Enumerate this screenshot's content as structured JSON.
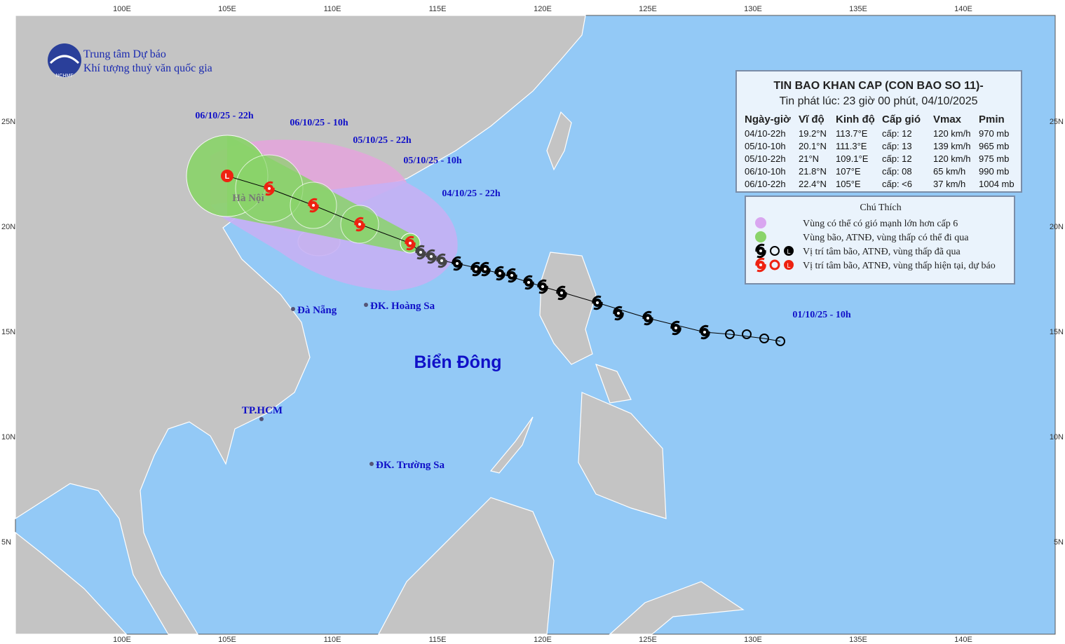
{
  "map": {
    "lon_labels": [
      "100E",
      "105E",
      "110E",
      "115E",
      "120E",
      "125E",
      "130E",
      "135E",
      "140E"
    ],
    "lat_labels": [
      "25N",
      "20N",
      "15N",
      "10N",
      "5N"
    ]
  },
  "header": {
    "org_line1": "Trung tâm Dự báo",
    "org_line2": "Khí tượng thuỷ văn quốc gia",
    "logo_text": "NCHMF"
  },
  "bulletin": {
    "title": "TIN BAO KHAN CAP (CON BAO SO 11)-",
    "issued": "Tin phát lúc: 23 giờ 00 phút, 04/10/2025",
    "columns": [
      "Ngày-giờ",
      "Vĩ độ",
      "Kinh độ",
      "Cấp gió",
      "Vmax",
      "Pmin"
    ],
    "rows": [
      [
        "04/10-22h",
        "19.2°N",
        "113.7°E",
        "cấp: 12",
        "120 km/h",
        "970 mb"
      ],
      [
        "05/10-10h",
        "20.1°N",
        "111.3°E",
        "cấp: 13",
        "139 km/h",
        "965 mb"
      ],
      [
        "05/10-22h",
        "21°N",
        "109.1°E",
        "cấp: 12",
        "120 km/h",
        "975 mb"
      ],
      [
        "06/10-10h",
        "21.8°N",
        "107°E",
        "cấp: 08",
        "65 km/h",
        "990 mb"
      ],
      [
        "06/10-22h",
        "22.4°N",
        "105°E",
        "cấp: <6",
        "37 km/h",
        "1004 mb"
      ]
    ]
  },
  "legend": {
    "title": "Chú Thích",
    "items": [
      "Vùng có thể có gió mạnh lớn hơn cấp 6",
      "Vùng bão, ATNĐ, vùng thấp có thể đi qua",
      "Vị trí tâm bão, ATNĐ, vùng thấp đã qua",
      "Vị trí tâm bão, ATNĐ, vùng thấp hiện tại, dự báo"
    ]
  },
  "track_labels": [
    "06/10/25 - 22h",
    "06/10/25 - 10h",
    "05/10/25 - 22h",
    "05/10/25 - 10h",
    "04/10/25 - 22h",
    "01/10/25 - 10h"
  ],
  "places": {
    "hanoi": "Hà Nội",
    "danang": "Đà Nẵng",
    "hoangsa": "ĐK. Hoàng Sa",
    "sea": "Biển Đông",
    "hcm": "TP.HCM",
    "truongsa": "ĐK. Trường Sa"
  }
}
